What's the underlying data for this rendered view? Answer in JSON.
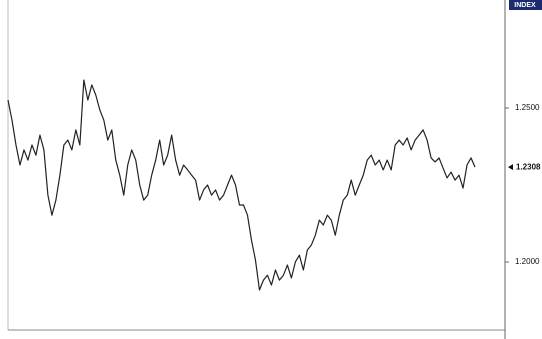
{
  "chart_data": {
    "type": "line",
    "axis_title": "INDEX",
    "series": [
      {
        "color": "#222222",
        "values": [
          1.2526,
          1.2461,
          1.238,
          1.2315,
          1.2364,
          1.2331,
          1.238,
          1.2347,
          1.2412,
          1.2364,
          1.2217,
          1.2152,
          1.2201,
          1.2282,
          1.238,
          1.2396,
          1.2364,
          1.2429,
          1.238,
          1.2591,
          1.2526,
          1.2575,
          1.2542,
          1.2494,
          1.2461,
          1.2396,
          1.2429,
          1.2331,
          1.2282,
          1.2217,
          1.2315,
          1.2364,
          1.2331,
          1.225,
          1.2201,
          1.2217,
          1.2282,
          1.2331,
          1.2396,
          1.2315,
          1.2347,
          1.2412,
          1.2331,
          1.2282,
          1.2315,
          1.2299,
          1.2282,
          1.2266,
          1.2201,
          1.2234,
          1.225,
          1.2217,
          1.2234,
          1.2201,
          1.2217,
          1.225,
          1.2282,
          1.225,
          1.2185,
          1.2185,
          1.2152,
          1.2071,
          1.2006,
          1.1909,
          1.1941,
          1.1957,
          1.1925,
          1.1974,
          1.1941,
          1.1957,
          1.199,
          1.1948,
          1.2,
          1.2022,
          1.1974,
          1.2039,
          1.2055,
          1.2087,
          1.2136,
          1.212,
          1.2152,
          1.2136,
          1.2087,
          1.2152,
          1.2201,
          1.2217,
          1.2266,
          1.2217,
          1.225,
          1.2282,
          1.2331,
          1.2347,
          1.2315,
          1.2331,
          1.2299,
          1.2331,
          1.2299,
          1.238,
          1.2396,
          1.238,
          1.2403,
          1.2364,
          1.2396,
          1.2412,
          1.2429,
          1.2396,
          1.2338,
          1.2325,
          1.2338,
          1.2305,
          1.2273,
          1.2292,
          1.2266,
          1.2282,
          1.224,
          1.2315,
          1.2338,
          1.2308
        ]
      }
    ],
    "current": {
      "value": 1.2308,
      "label": "1.2308"
    },
    "ylim": [
      1.1779,
      1.2851
    ],
    "yticks": [
      {
        "value": 1.2,
        "label": "1.2000"
      },
      {
        "value": 1.25,
        "label": "1.2500"
      }
    ],
    "axis_side": "right"
  }
}
